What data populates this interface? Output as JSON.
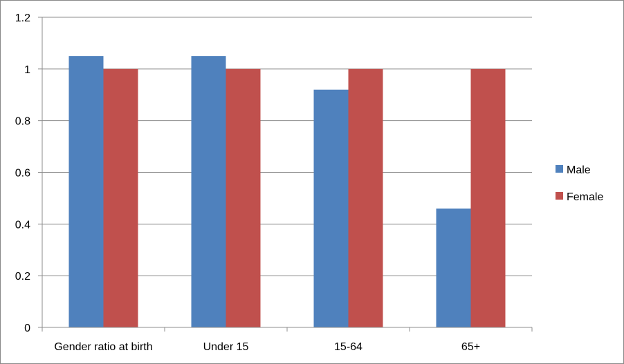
{
  "chart_data": {
    "type": "bar",
    "title": "",
    "xlabel": "",
    "ylabel": "",
    "categories": [
      "Gender ratio at birth",
      "Under 15",
      "15-64",
      "65+"
    ],
    "series": [
      {
        "name": "Male",
        "color": "#4F81BD",
        "values": [
          1.05,
          1.05,
          0.92,
          0.46
        ]
      },
      {
        "name": "Female",
        "color": "#C0504D",
        "values": [
          1.0,
          1.0,
          1.0,
          1.0
        ]
      }
    ],
    "ylim": [
      0,
      1.2
    ],
    "yticks": [
      "0",
      "0.2",
      "0.4",
      "0.6",
      "0.8",
      "1",
      "1.2"
    ],
    "grid": true,
    "legend_position": "right"
  }
}
